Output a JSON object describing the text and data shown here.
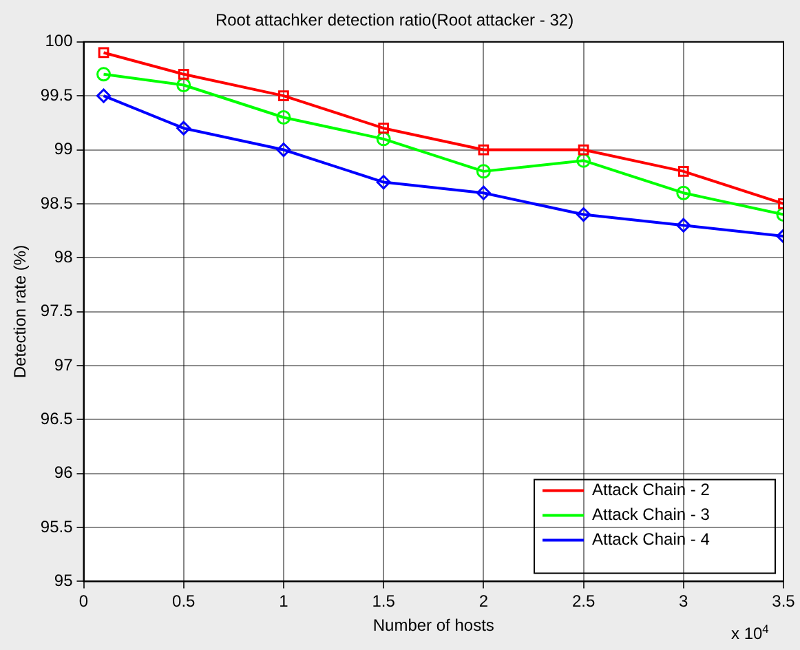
{
  "chart_data": {
    "type": "line",
    "title": "Root attachker detection ratio(Root attacker - 32)",
    "xlabel": "Number of hosts",
    "ylabel": "Detection rate (%)",
    "annotations": [
      "x 10$^{4}$"
    ],
    "x": [
      0.1,
      0.5,
      1,
      1.5,
      2,
      2.5,
      3,
      3.5
    ],
    "series": [
      {
        "name": "Attack Chain - 2",
        "color": "#ff0000",
        "marker": "square",
        "values": [
          99.9,
          99.7,
          99.5,
          99.2,
          99.0,
          99.0,
          98.8,
          98.5
        ]
      },
      {
        "name": "Attack Chain - 3",
        "color": "#00ff00",
        "marker": "circle",
        "values": [
          99.7,
          99.6,
          99.3,
          99.1,
          98.8,
          98.9,
          98.6,
          98.4
        ]
      },
      {
        "name": "Attack Chain - 4",
        "color": "#0000ff",
        "marker": "diamond",
        "values": [
          99.5,
          99.2,
          99.0,
          98.7,
          98.6,
          98.4,
          98.3,
          98.2
        ]
      }
    ],
    "xlim": [
      0,
      3.5
    ],
    "xticks": [
      0,
      0.5,
      1,
      1.5,
      2,
      2.5,
      3,
      3.5
    ],
    "ylim": [
      95,
      100
    ],
    "yticks": [
      95,
      95.5,
      96,
      96.5,
      97,
      97.5,
      98,
      98.5,
      99,
      99.5,
      100
    ],
    "grid": true,
    "line_style": "solid",
    "legend": "bottom right"
  }
}
